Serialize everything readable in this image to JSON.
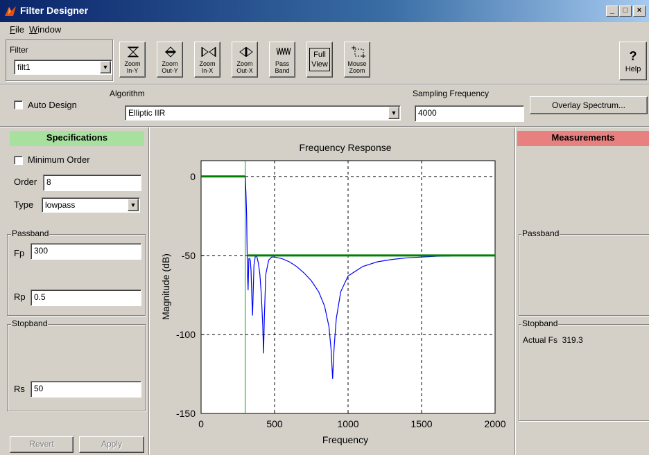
{
  "window": {
    "title": "Filter Designer",
    "minimize": "_",
    "maximize": "□",
    "close": "×"
  },
  "menu": [
    {
      "label": "File",
      "accel": "F",
      "rest": "ile"
    },
    {
      "label": "Window",
      "accel": "W",
      "rest": "indow"
    }
  ],
  "toolbar": {
    "filter_label": "Filter",
    "filter_selected": "filt1",
    "buttons": [
      {
        "line1": "Zoom",
        "line2": "In-Y",
        "icon": "zoom-in-y-icon"
      },
      {
        "line1": "Zoom",
        "line2": "Out-Y",
        "icon": "zoom-out-y-icon"
      },
      {
        "line1": "Zoom",
        "line2": "In-X",
        "icon": "zoom-in-x-icon"
      },
      {
        "line1": "Zoom",
        "line2": "Out-X",
        "icon": "zoom-out-x-icon"
      },
      {
        "line1": "Pass",
        "line2": "Band",
        "icon": "pass-band-icon"
      },
      {
        "line1": "Full",
        "line2": "View",
        "icon": ""
      },
      {
        "line1": "Mouse",
        "line2": "Zoom",
        "icon": "mouse-zoom-icon"
      }
    ],
    "help_glyph": "?",
    "help_label": "Help"
  },
  "design_bar": {
    "auto_design_label": "Auto Design",
    "algorithm_label": "Algorithm",
    "algorithm_selected": "Elliptic IIR",
    "sampling_label": "Sampling Frequency",
    "sampling_value": "4000",
    "overlay_button": "Overlay Spectrum..."
  },
  "specifications": {
    "header": "Specifications",
    "header_color": "#a8e0a0",
    "minimum_order_label": "Minimum Order",
    "order_label": "Order",
    "order_value": "8",
    "type_label": "Type",
    "type_selected": "lowpass",
    "passband_legend": "Passband",
    "fp_label": "Fp",
    "fp_value": "300",
    "rp_label": "Rp",
    "rp_value": "0.5",
    "stopband_legend": "Stopband",
    "rs_label": "Rs",
    "rs_value": "50",
    "revert_button": "Revert",
    "apply_button": "Apply"
  },
  "measurements": {
    "header": "Measurements",
    "header_color": "#e88080",
    "passband_legend": "Passband",
    "stopband_legend": "Stopband",
    "actual_fs": "Actual Fs  319.3"
  },
  "chart_data": {
    "type": "line",
    "title": "Frequency Response",
    "xlabel": "Frequency",
    "ylabel": "Magnitude (dB)",
    "xlim": [
      0,
      2000
    ],
    "ylim": [
      -150,
      10
    ],
    "xticks": [
      0,
      500,
      1000,
      1500,
      2000
    ],
    "yticks": [
      0,
      -50,
      -100,
      -150
    ],
    "grid": "dashed",
    "series": [
      {
        "color": "#0000ff",
        "x": [
          300,
          305,
          310,
          315,
          320,
          325,
          330,
          335,
          340,
          345,
          350,
          360,
          370,
          380,
          390,
          400,
          410,
          420,
          425,
          430,
          440,
          460,
          480,
          500,
          550,
          600,
          650,
          700,
          750,
          800,
          840,
          870,
          885,
          895,
          905,
          920,
          950,
          1000,
          1100,
          1200,
          1300,
          1400,
          1500,
          1600,
          1700
        ],
        "y": [
          0,
          -10,
          -25,
          -60,
          -72,
          -52,
          -52,
          -53,
          -60,
          -75,
          -88,
          -56,
          -50,
          -51,
          -55,
          -62,
          -75,
          -95,
          -112,
          -90,
          -62,
          -53,
          -51,
          -51,
          -52,
          -54,
          -57,
          -61,
          -66,
          -73,
          -82,
          -95,
          -110,
          -128,
          -108,
          -90,
          -73,
          -63,
          -57,
          -54,
          -52.5,
          -51.5,
          -51,
          -50.5,
          -50.3
        ]
      },
      {
        "color": "#008000",
        "x": [
          0,
          300
        ],
        "y": [
          0,
          0
        ]
      },
      {
        "color": "#008000",
        "x": [
          320,
          2000
        ],
        "y": [
          -50,
          -50
        ]
      }
    ],
    "marker_line": {
      "x": 300,
      "color": "#00a000"
    }
  }
}
